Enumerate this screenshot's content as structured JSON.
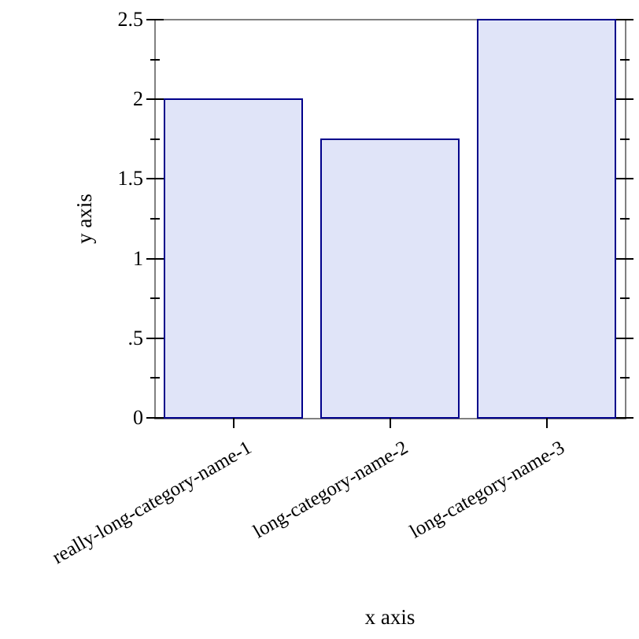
{
  "chart_data": {
    "type": "bar",
    "title": "",
    "xlabel": "x axis",
    "ylabel": "y axis",
    "categories": [
      "really-long-category-name-1",
      "long-category-name-2",
      "long-category-name-3"
    ],
    "values": [
      2,
      1.75,
      2.5
    ],
    "ylim": [
      0,
      2.5
    ],
    "y_major_ticks": [
      {
        "value": 0,
        "label": "0"
      },
      {
        "value": 0.5,
        "label": ".5"
      },
      {
        "value": 1,
        "label": "1"
      },
      {
        "value": 1.5,
        "label": "1.5"
      },
      {
        "value": 2,
        "label": "2"
      },
      {
        "value": 2.5,
        "label": "2.5"
      }
    ],
    "y_minor_ticks": [
      0.25,
      0.75,
      1.25,
      1.75,
      2.25
    ],
    "bar_width_fraction": 0.875,
    "category_label_angle_deg": -30,
    "grid": false,
    "legend_position": "none",
    "colors": {
      "bar_fill": "#e0e4f8",
      "bar_border": "#00008b",
      "axis_frame": "#808080",
      "tick": "#000000",
      "text": "#000000",
      "background": "#ffffff"
    }
  }
}
